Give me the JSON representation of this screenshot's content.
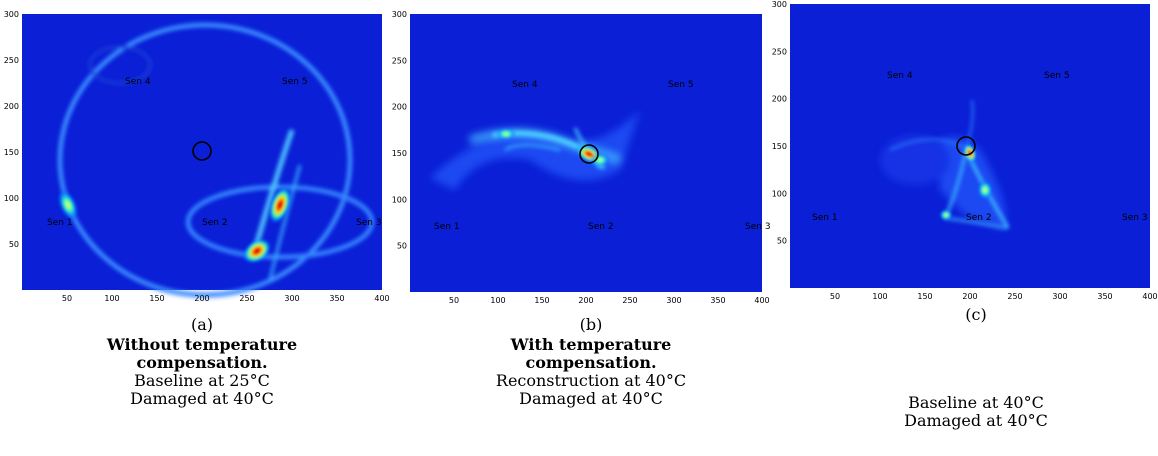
{
  "figure": {
    "panels": [
      {
        "id": "a",
        "label": "(a)",
        "bold_lines": [
          "Without temperature",
          "compensation."
        ],
        "plain_lines": [
          "Baseline at 25°C",
          "Damaged at 40°C"
        ]
      },
      {
        "id": "b",
        "label": "(b)",
        "bold_lines": [
          "With temperature",
          "compensation."
        ],
        "plain_lines": [
          "Reconstruction at 40°C",
          "Damaged at 40°C"
        ]
      },
      {
        "id": "c",
        "label": "(c)",
        "bold_lines": [],
        "plain_lines": [
          "Baseline at 40°C",
          "Damaged at 40°C"
        ]
      }
    ]
  },
  "chart_data": [
    {
      "type": "heatmap",
      "panel": "a",
      "xlim": [
        0,
        400
      ],
      "ylim": [
        0,
        300
      ],
      "xticks": [
        50,
        100,
        150,
        200,
        250,
        300,
        350,
        400
      ],
      "yticks": [
        50,
        100,
        150,
        200,
        250,
        300
      ],
      "colormap": "jet",
      "sensors": [
        {
          "name": "Sen 1",
          "x": 45,
          "y": 75
        },
        {
          "name": "Sen 2",
          "x": 205,
          "y": 75
        },
        {
          "name": "Sen 3",
          "x": 370,
          "y": 75
        },
        {
          "name": "Sen 4",
          "x": 130,
          "y": 225
        },
        {
          "name": "Sen 5",
          "x": 295,
          "y": 225
        }
      ],
      "damage_marker": {
        "x": 200,
        "y": 150,
        "r": 10
      },
      "hotspots": [
        {
          "x": 285,
          "y": 105,
          "intensity": 1.0
        },
        {
          "x": 260,
          "y": 45,
          "intensity": 0.95
        },
        {
          "x": 45,
          "y": 95,
          "intensity": 0.55
        }
      ]
    },
    {
      "type": "heatmap",
      "panel": "b",
      "xlim": [
        0,
        400
      ],
      "ylim": [
        0,
        300
      ],
      "xticks": [
        50,
        100,
        150,
        200,
        250,
        300,
        350,
        400
      ],
      "yticks": [
        50,
        100,
        150,
        200,
        250,
        300
      ],
      "colormap": "jet",
      "sensors": [
        {
          "name": "Sen 1",
          "x": 45,
          "y": 75
        },
        {
          "name": "Sen 2",
          "x": 205,
          "y": 75
        },
        {
          "name": "Sen 3",
          "x": 380,
          "y": 75
        },
        {
          "name": "Sen 4",
          "x": 130,
          "y": 225
        },
        {
          "name": "Sen 5",
          "x": 295,
          "y": 225
        }
      ],
      "damage_marker": {
        "x": 200,
        "y": 150,
        "r": 10
      },
      "hotspots": [
        {
          "x": 200,
          "y": 150,
          "intensity": 1.0
        },
        {
          "x": 105,
          "y": 170,
          "intensity": 0.6
        },
        {
          "x": 215,
          "y": 140,
          "intensity": 0.5
        }
      ]
    },
    {
      "type": "heatmap",
      "panel": "c",
      "xlim": [
        0,
        400
      ],
      "ylim": [
        0,
        300
      ],
      "xticks": [
        50,
        100,
        150,
        200,
        250,
        300,
        350,
        400
      ],
      "yticks": [
        50,
        100,
        150,
        200,
        250,
        300
      ],
      "colormap": "jet",
      "sensors": [
        {
          "name": "Sen 1",
          "x": 45,
          "y": 75
        },
        {
          "name": "Sen 2",
          "x": 205,
          "y": 75
        },
        {
          "name": "Sen 3",
          "x": 385,
          "y": 75
        },
        {
          "name": "Sen 4",
          "x": 130,
          "y": 225
        },
        {
          "name": "Sen 5",
          "x": 295,
          "y": 225
        }
      ],
      "damage_marker": {
        "x": 200,
        "y": 150,
        "r": 10
      },
      "hotspots": [
        {
          "x": 205,
          "y": 140,
          "intensity": 1.0
        },
        {
          "x": 225,
          "y": 105,
          "intensity": 0.5
        },
        {
          "x": 175,
          "y": 75,
          "intensity": 0.45
        }
      ]
    }
  ]
}
